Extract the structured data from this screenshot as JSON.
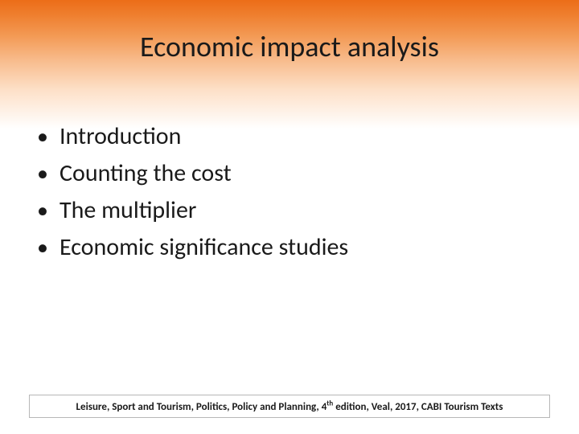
{
  "slide": {
    "title": "Economic impact analysis",
    "title_fontsize": 36,
    "title_color": "#1a1a1a",
    "bullets": [
      "Introduction",
      "Counting the cost",
      "The multiplier",
      "Economic significance studies"
    ],
    "bullet_fontsize": 30,
    "bullet_marker": "•",
    "footer_prefix": "Leisure, Sport and Tourism, Politics, Policy and Planning, 4",
    "footer_suffix": " edition, Veal, 2017, CABI Tourism Texts",
    "footer_sup": "th",
    "footer_fontsize": 13
  },
  "style": {
    "gradient_top": "#ec6d18",
    "gradient_bottom": "#ffffff",
    "background": "#ffffff",
    "footer_border": "#b7b7b7"
  }
}
